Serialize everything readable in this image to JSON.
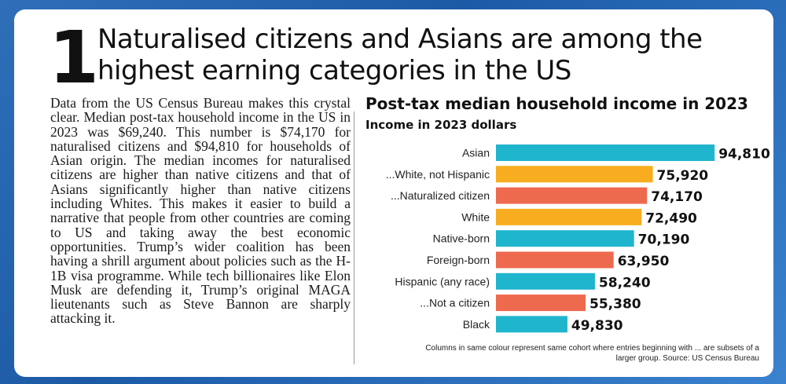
{
  "article": {
    "number": "1",
    "headline": "Naturalised citizens and Asians are among the highest earning categories in the US",
    "body": "Data from the US Census Bureau makes this crystal clear. Median post-tax household income in the US in 2023 was $69,240. This number is $74,170 for naturalised citizens and $94,810 for households of Asian origin. The median incomes for naturalised citizens are higher than native citizens and that of Asians significantly higher than native citizens including Whites. This makes it easier to build a narrative that people from other countries are coming to US and taking away the best economic opportunities. Trump’s wider coalition has been having a shrill argument about policies such as the H-1B visa programme. While tech billionaires like Elon Musk are defending it, Trump’s original MAGA lieutenants such as Steve Bannon are sharply attacking it."
  },
  "colors": {
    "teal": "#1fb5cc",
    "orange": "#f7ad1f",
    "coral": "#ee6a4e"
  },
  "chart_data": {
    "type": "bar",
    "orientation": "horizontal",
    "title": "Post-tax median household income in 2023",
    "subtitle": "Income in 2023 dollars",
    "categories": [
      "Asian",
      "...White, not Hispanic",
      "...Naturalized citizen",
      "White",
      "Native-born",
      "Foreign-born",
      "Hispanic (any race)",
      "...Not a citizen",
      "Black"
    ],
    "values": [
      94810,
      75920,
      74170,
      72490,
      70190,
      63950,
      58240,
      55380,
      49830
    ],
    "value_labels": [
      "94,810",
      "75,920",
      "74,170",
      "72,490",
      "70,190",
      "63,950",
      "58,240",
      "55,380",
      "49,830"
    ],
    "bar_colors": [
      "teal",
      "orange",
      "coral",
      "orange",
      "teal",
      "coral",
      "teal",
      "coral",
      "teal"
    ],
    "grid": false,
    "legend": "none",
    "footnote": "Columns in same colour represent same cohort where entries beginning with ... are subsets of a larger group. Source: US Census Bureau"
  }
}
